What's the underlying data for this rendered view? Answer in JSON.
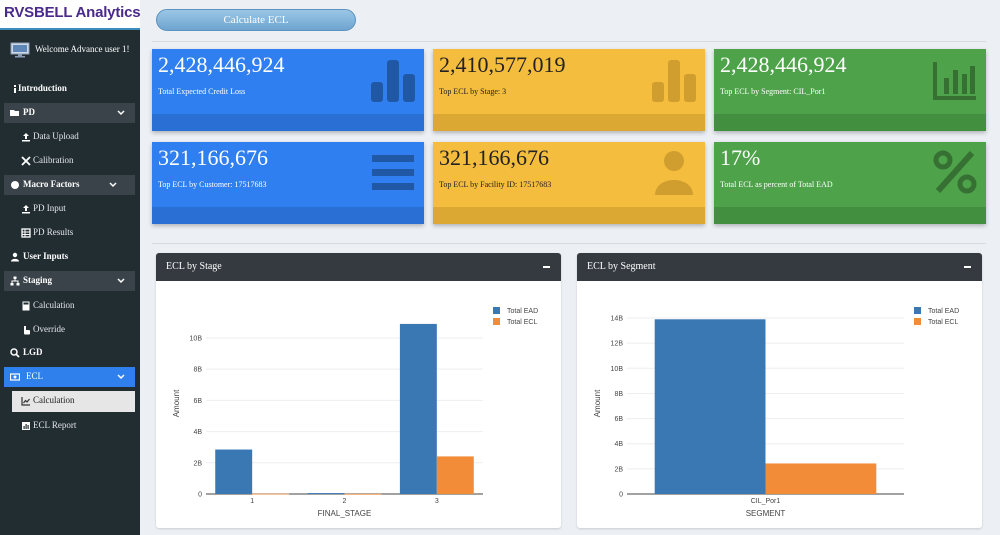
{
  "app": {
    "logo": "RVSBELL Analytics",
    "welcome": "Welcome Advance user 1!"
  },
  "sidebar": {
    "items": [
      {
        "label": "Introduction"
      },
      {
        "label": "PD"
      },
      {
        "label": "Data Upload"
      },
      {
        "label": "Calibration"
      },
      {
        "label": "Macro Factors"
      },
      {
        "label": "PD Input"
      },
      {
        "label": "PD Results"
      },
      {
        "label": "User Inputs"
      },
      {
        "label": "Staging"
      },
      {
        "label": "Calculation"
      },
      {
        "label": "Override"
      },
      {
        "label": "LGD"
      },
      {
        "label": "ECL"
      },
      {
        "label": "Calculation"
      },
      {
        "label": "ECL Report"
      }
    ]
  },
  "toolbar": {
    "calculate_label": "Calculate ECL"
  },
  "kpis": [
    {
      "value": "2,428,446,924",
      "label": "Total Expected Credit Loss",
      "color": "#2f7ff0",
      "icon": "bar-chart-icon"
    },
    {
      "value": "2,410,577,019",
      "label": "Top ECL by Stage: 3",
      "color": "#f5bd3e",
      "icon": "bar-chart-icon"
    },
    {
      "value": "2,428,446,924",
      "label": "Top ECL by Segment: CIL_Por1",
      "color": "#4ea34a",
      "icon": "area-chart-icon"
    },
    {
      "value": "321,166,676",
      "label": "Top ECL by Customer: 17517683",
      "color": "#2f7ff0",
      "icon": "list-icon"
    },
    {
      "value": "321,166,676",
      "label": "Top ECL by Facility ID: 17517683",
      "color": "#f5bd3e",
      "icon": "user-icon"
    },
    {
      "value": "17%",
      "label": "Total ECL as percent of Total EAD",
      "color": "#4ea34a",
      "icon": "percent-icon"
    }
  ],
  "panels": [
    {
      "title": "ECL by Stage"
    },
    {
      "title": "ECL by Segment"
    }
  ],
  "colors": {
    "ead": "#3a78b4",
    "ecl": "#f28c38"
  },
  "chart_data": [
    {
      "type": "bar",
      "categories": [
        "1",
        "2",
        "3"
      ],
      "series": [
        {
          "name": "Total EAD",
          "values": [
            2.85,
            0.06,
            10.9
          ]
        },
        {
          "name": "Total ECL",
          "values": [
            0.02,
            0.01,
            2.41
          ]
        }
      ],
      "units": "billions",
      "xlabel": "FINAL_STAGE",
      "ylabel": "Amount",
      "yticks": [
        "0",
        "2B",
        "4B",
        "6B",
        "8B",
        "10B"
      ],
      "ylim": [
        0,
        11.6
      ],
      "legend": "top-right",
      "grid": true
    },
    {
      "type": "bar",
      "categories": [
        "CIL_Por1"
      ],
      "series": [
        {
          "name": "Total EAD",
          "values": [
            13.9
          ]
        },
        {
          "name": "Total ECL",
          "values": [
            2.43
          ]
        }
      ],
      "units": "billions",
      "xlabel": "SEGMENT",
      "ylabel": "Amount",
      "yticks": [
        "0",
        "2B",
        "4B",
        "6B",
        "8B",
        "10B",
        "12B",
        "14B"
      ],
      "ylim": [
        0,
        14.4
      ],
      "legend": "top-right",
      "grid": true
    }
  ]
}
